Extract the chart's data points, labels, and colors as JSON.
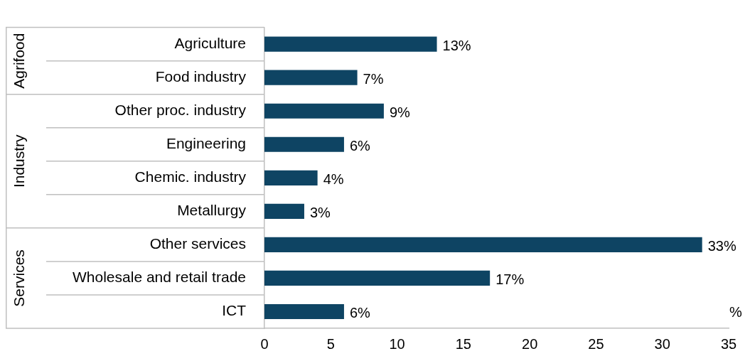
{
  "chart_data": {
    "type": "bar",
    "orientation": "horizontal",
    "categories": [
      "Agriculture",
      "Food industry",
      "Other proc. industry",
      "Engineering",
      "Chemic. industry",
      "Metallurgy",
      "Other services",
      "Wholesale and retail trade",
      "ICT"
    ],
    "values": [
      13,
      7,
      9,
      6,
      4,
      3,
      33,
      17,
      6
    ],
    "value_labels": [
      "13%",
      "7%",
      "9%",
      "6%",
      "4%",
      "3%",
      "33%",
      "17%",
      "6%"
    ],
    "color": "#0e4463",
    "xlabel": "%",
    "xlim": [
      0,
      35
    ],
    "xticks": [
      0,
      5,
      10,
      15,
      20,
      25,
      30,
      35
    ],
    "grid": false,
    "legend": false,
    "annotations": [
      "Agrifood",
      "Industry",
      "Services"
    ]
  }
}
